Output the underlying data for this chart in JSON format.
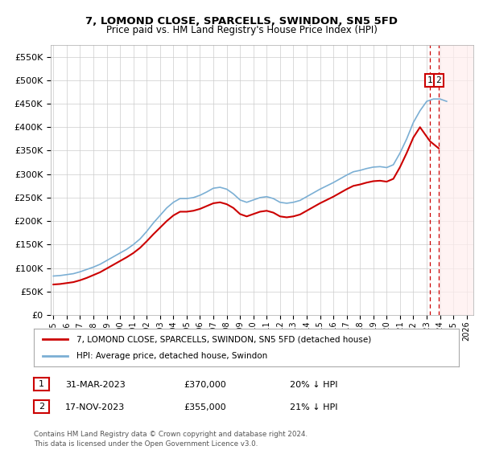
{
  "title": "7, LOMOND CLOSE, SPARCELLS, SWINDON, SN5 5FD",
  "subtitle": "Price paid vs. HM Land Registry's House Price Index (HPI)",
  "ylim": [
    0,
    575000
  ],
  "yticks": [
    0,
    50000,
    100000,
    150000,
    200000,
    250000,
    300000,
    350000,
    400000,
    450000,
    500000,
    550000
  ],
  "ytick_labels": [
    "£0",
    "£50K",
    "£100K",
    "£150K",
    "£200K",
    "£250K",
    "£300K",
    "£350K",
    "£400K",
    "£450K",
    "£500K",
    "£550K"
  ],
  "hpi_color": "#7bafd4",
  "price_color": "#cc0000",
  "annotation_box_color": "#cc0000",
  "dashed_line_color": "#cc0000",
  "legend_label_price": "7, LOMOND CLOSE, SPARCELLS, SWINDON, SN5 5FD (detached house)",
  "legend_label_hpi": "HPI: Average price, detached house, Swindon",
  "sale1_label": "1",
  "sale1_date": "31-MAR-2023",
  "sale1_price": "£370,000",
  "sale1_hpi": "20% ↓ HPI",
  "sale2_label": "2",
  "sale2_date": "17-NOV-2023",
  "sale2_price": "£355,000",
  "sale2_hpi": "21% ↓ HPI",
  "footer": "Contains HM Land Registry data © Crown copyright and database right 2024.\nThis data is licensed under the Open Government Licence v3.0.",
  "background_color": "#ffffff",
  "grid_color": "#cccccc",
  "hpi_years": [
    1995,
    1995.5,
    1996,
    1996.5,
    1997,
    1997.5,
    1998,
    1998.5,
    1999,
    1999.5,
    2000,
    2000.5,
    2001,
    2001.5,
    2002,
    2002.5,
    2003,
    2003.5,
    2004,
    2004.5,
    2005,
    2005.5,
    2006,
    2006.5,
    2007,
    2007.5,
    2008,
    2008.5,
    2009,
    2009.5,
    2010,
    2010.5,
    2011,
    2011.5,
    2012,
    2012.5,
    2013,
    2013.5,
    2014,
    2014.5,
    2015,
    2015.5,
    2016,
    2016.5,
    2017,
    2017.5,
    2018,
    2018.5,
    2019,
    2019.5,
    2020,
    2020.5,
    2021,
    2021.5,
    2022,
    2022.5,
    2023,
    2023.5,
    2024,
    2024.5
  ],
  "hpi_values": [
    83000,
    84000,
    86000,
    88000,
    92000,
    97000,
    102000,
    108000,
    116000,
    124000,
    132000,
    140000,
    150000,
    162000,
    178000,
    196000,
    212000,
    228000,
    240000,
    248000,
    248000,
    250000,
    255000,
    262000,
    270000,
    272000,
    268000,
    258000,
    245000,
    240000,
    245000,
    250000,
    252000,
    248000,
    240000,
    238000,
    240000,
    244000,
    252000,
    260000,
    268000,
    275000,
    282000,
    290000,
    298000,
    305000,
    308000,
    312000,
    315000,
    316000,
    314000,
    320000,
    345000,
    375000,
    410000,
    435000,
    455000,
    460000,
    460000,
    455000
  ],
  "price_years": [
    1995,
    1995.5,
    1996,
    1996.5,
    1997,
    1997.5,
    1998,
    1998.5,
    1999,
    1999.5,
    2000,
    2000.5,
    2001,
    2001.5,
    2002,
    2002.5,
    2003,
    2003.5,
    2004,
    2004.5,
    2005,
    2005.5,
    2006,
    2006.5,
    2007,
    2007.5,
    2008,
    2008.5,
    2009,
    2009.5,
    2010,
    2010.5,
    2011,
    2011.5,
    2012,
    2012.5,
    2013,
    2013.5,
    2014,
    2014.5,
    2015,
    2015.5,
    2016,
    2016.5,
    2017,
    2017.5,
    2018,
    2018.5,
    2019,
    2019.5,
    2020,
    2020.5,
    2021,
    2021.5,
    2022,
    2022.5,
    2023.25,
    2023.9
  ],
  "price_values": [
    65000,
    66000,
    68000,
    70000,
    74000,
    79000,
    85000,
    91000,
    99000,
    107000,
    115000,
    123000,
    132000,
    143000,
    157000,
    172000,
    186000,
    200000,
    212000,
    220000,
    220000,
    222000,
    226000,
    232000,
    238000,
    240000,
    236000,
    228000,
    215000,
    210000,
    215000,
    220000,
    222000,
    218000,
    210000,
    208000,
    210000,
    214000,
    222000,
    230000,
    238000,
    245000,
    252000,
    260000,
    268000,
    275000,
    278000,
    282000,
    285000,
    286000,
    284000,
    290000,
    315000,
    345000,
    378000,
    400000,
    370000,
    355000
  ],
  "sale1_x": 2023.25,
  "sale2_x": 2023.9,
  "hatch_start": 2023.9,
  "xlim_start": 1994.8,
  "xlim_end": 2026.5
}
